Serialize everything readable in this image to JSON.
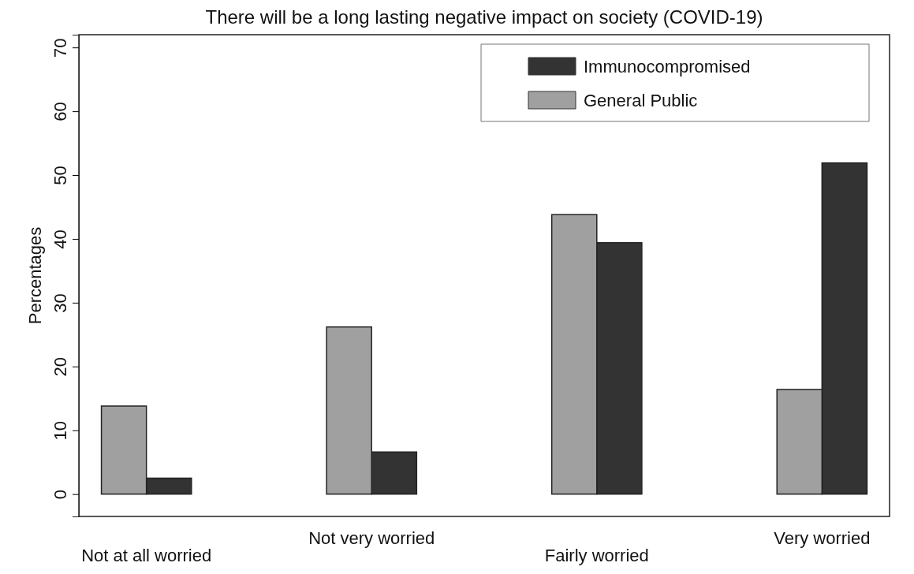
{
  "chart_data": {
    "type": "bar",
    "title": "There will be a long lasting negative impact on society (COVID-19)",
    "ylabel": "Percentages",
    "categories": [
      "Not at all worried",
      "Not very worried",
      "Fairly worried",
      "Very worried"
    ],
    "series": [
      {
        "name": "Immunocompromised",
        "color": "#333333",
        "values": [
          2.5,
          6.6,
          39.4,
          51.9
        ]
      },
      {
        "name": "General Public",
        "color": "#a0a0a0",
        "values": [
          13.8,
          26.2,
          43.8,
          16.4
        ]
      }
    ],
    "ylim": [
      -3.5,
      72
    ],
    "yticks": [
      0,
      10,
      20,
      30,
      40,
      50,
      60,
      70
    ],
    "grid": false,
    "legend": "top right"
  }
}
